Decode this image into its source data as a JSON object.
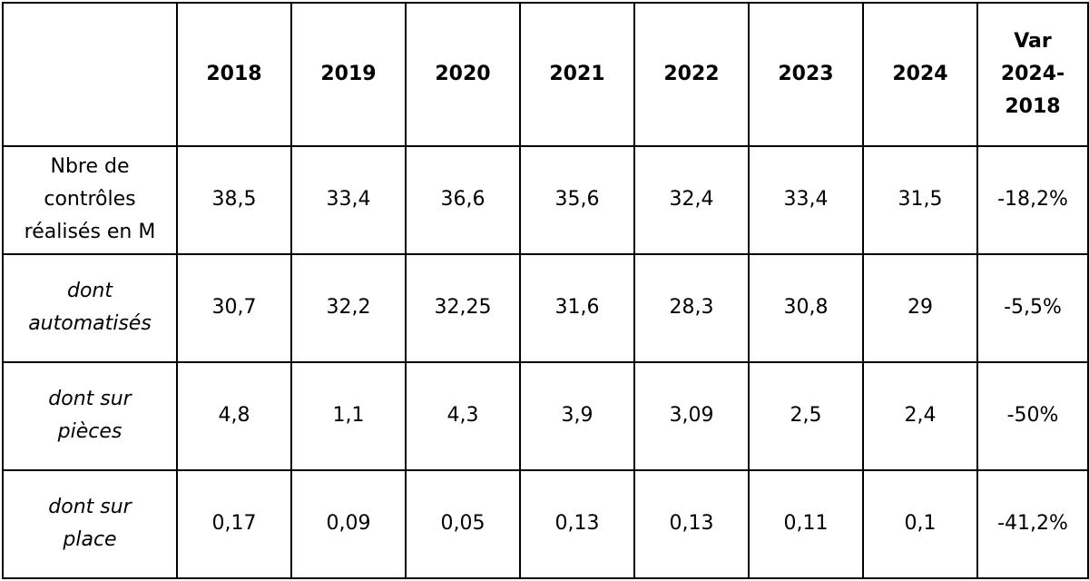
{
  "table": {
    "columns": [
      "",
      "2018",
      "2019",
      "2020",
      "2021",
      "2022",
      "2023",
      "2024",
      "Var\n2024-\n2018"
    ],
    "rows": [
      {
        "label": "Nbre de\ncontrôles\nréalisés en M",
        "italic": false,
        "cells": [
          "38,5",
          "33,4",
          "36,6",
          "35,6",
          "32,4",
          "33,4",
          "31,5",
          "-18,2%"
        ]
      },
      {
        "label": "dont\nautomatisés",
        "italic": true,
        "cells": [
          "30,7",
          "32,2",
          "32,25",
          "31,6",
          "28,3",
          "30,8",
          "29",
          "-5,5%"
        ]
      },
      {
        "label": "dont sur\npièces",
        "italic": true,
        "cells": [
          "4,8",
          "1,1",
          "4,3",
          "3,9",
          "3,09",
          "2,5",
          "2,4",
          "-50%"
        ]
      },
      {
        "label": "dont sur\nplace",
        "italic": true,
        "cells": [
          "0,17",
          "0,09",
          "0,05",
          "0,13",
          "0,13",
          "0,11",
          "0,1",
          "-41,2%"
        ]
      }
    ]
  }
}
